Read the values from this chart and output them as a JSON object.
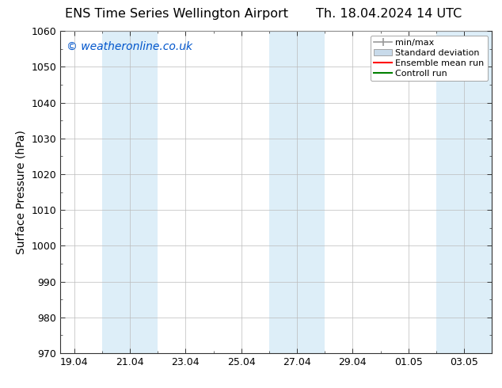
{
  "title_left": "ENS Time Series Wellington Airport",
  "title_right": "Th. 18.04.2024 14 UTC",
  "ylabel": "Surface Pressure (hPa)",
  "ylim": [
    970,
    1060
  ],
  "yticks": [
    970,
    980,
    990,
    1000,
    1010,
    1020,
    1030,
    1040,
    1050,
    1060
  ],
  "x_labels": [
    "19.04",
    "21.04",
    "23.04",
    "25.04",
    "27.04",
    "29.04",
    "01.05",
    "03.05"
  ],
  "x_positions": [
    0,
    2,
    4,
    6,
    8,
    10,
    12,
    14
  ],
  "x_min": -0.5,
  "x_max": 15.0,
  "shaded_bands": [
    {
      "x_start": 1.0,
      "x_end": 3.0,
      "color": "#ddeef8"
    },
    {
      "x_start": 7.0,
      "x_end": 9.0,
      "color": "#ddeef8"
    },
    {
      "x_start": 13.0,
      "x_end": 15.0,
      "color": "#ddeef8"
    }
  ],
  "watermark": "© weatheronline.co.uk",
  "watermark_color": "#0055cc",
  "bg_color": "#ffffff",
  "plot_bg_color": "#ffffff",
  "border_color": "#333333",
  "grid_color": "#bbbbbb",
  "legend_items": [
    {
      "label": "min/max",
      "color": "#999999",
      "style": "errorbar"
    },
    {
      "label": "Standard deviation",
      "color": "#c8daea",
      "style": "rect"
    },
    {
      "label": "Ensemble mean run",
      "color": "#ff0000",
      "style": "line"
    },
    {
      "label": "Controll run",
      "color": "#008000",
      "style": "line"
    }
  ],
  "title_fontsize": 11.5,
  "axis_label_fontsize": 10,
  "tick_fontsize": 9,
  "watermark_fontsize": 10,
  "legend_fontsize": 8
}
